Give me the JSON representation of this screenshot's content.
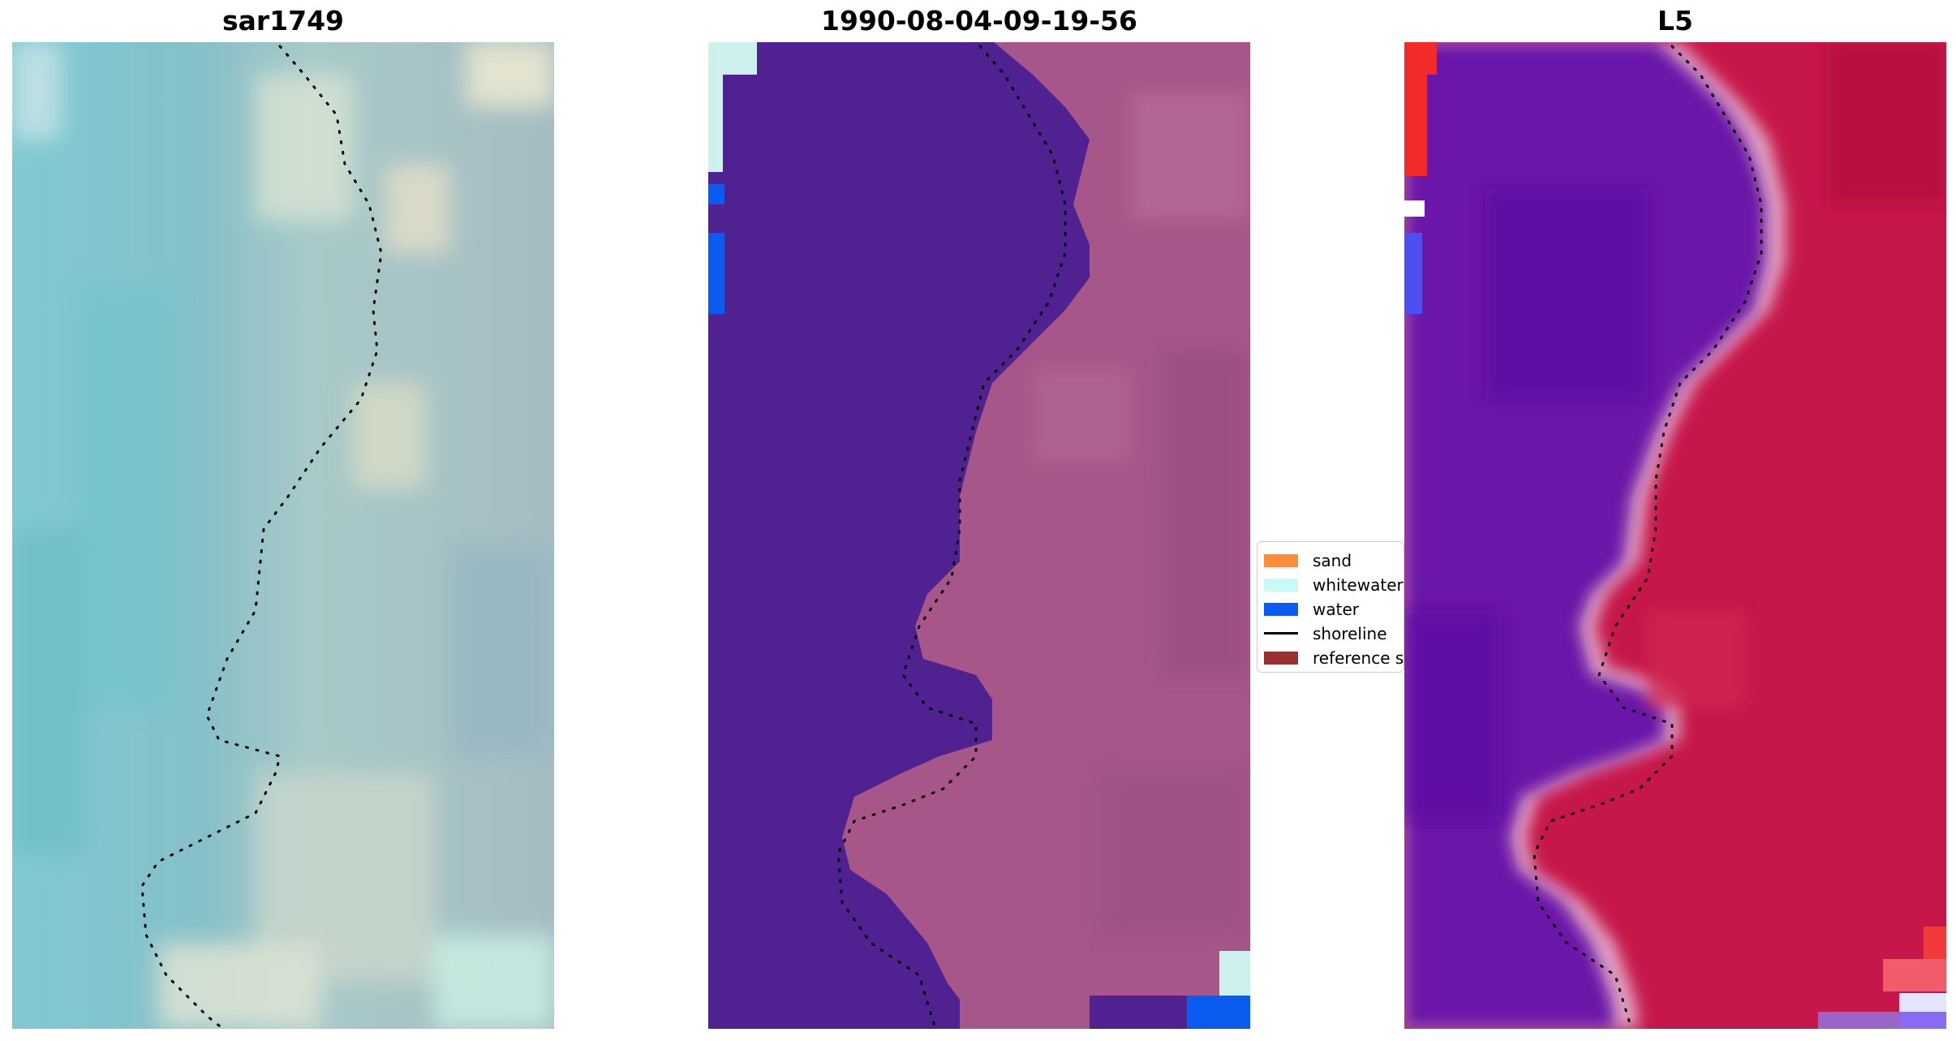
{
  "panels": [
    {
      "title": "sar1749"
    },
    {
      "title": "1990-08-04-09-19-56"
    },
    {
      "title": "L5"
    }
  ],
  "legend": {
    "items": [
      {
        "label": "sand",
        "color": "#ff8c3a",
        "kind": "patch"
      },
      {
        "label": "whitewater",
        "color": "#c8fbf7",
        "kind": "patch"
      },
      {
        "label": "water",
        "color": "#0a5cf0",
        "kind": "patch"
      },
      {
        "label": "shoreline",
        "color": "#000000",
        "kind": "line"
      },
      {
        "label": "reference shoreline",
        "color": "#9b2f2f",
        "kind": "patch"
      }
    ]
  },
  "colors": {
    "satellite_water": "#7ab7c4",
    "satellite_land": "#c9d3d0",
    "classified_water": "#4f2191",
    "classified_land": "#aa5a8a",
    "mndwi_water": "#6410a8",
    "mndwi_land": "#c4123e"
  }
}
